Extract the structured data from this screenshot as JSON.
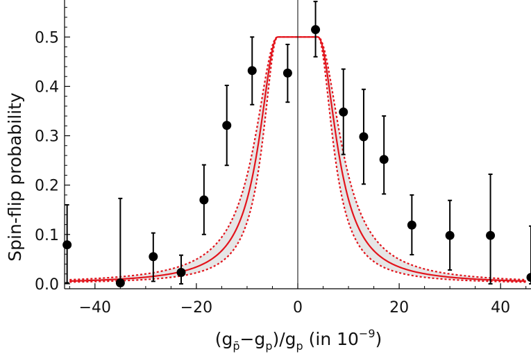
{
  "chart_data": {
    "type": "scatter",
    "title": "",
    "ylabel": "Spin-flip probability",
    "xlabel_parts": {
      "open": "(g",
      "sub1": "p̄",
      "minus": "−g",
      "sub2": "p",
      "mid": ")/g",
      "sub3": "p",
      "tail": " (in 10",
      "exp": "−9",
      "close": ")"
    },
    "xlim": [
      -46,
      46
    ],
    "ylim": [
      -0.01,
      0.575
    ],
    "x_ticks": [
      -40,
      -20,
      0,
      20,
      40
    ],
    "x_tick_labels": [
      "−40",
      "−20",
      "0",
      "20",
      "40"
    ],
    "y_ticks": [
      0.0,
      0.1,
      0.2,
      0.3,
      0.4,
      0.5
    ],
    "y_tick_labels": [
      "0.0",
      "0.1",
      "0.2",
      "0.3",
      "0.4",
      "0.5"
    ],
    "grid": false,
    "points": [
      {
        "x": -45.5,
        "y": 0.079,
        "err_low": 0.077,
        "err_high": 0.081
      },
      {
        "x": -35.0,
        "y": 0.002,
        "err_low": 0.002,
        "err_high": 0.171
      },
      {
        "x": -28.5,
        "y": 0.055,
        "err_low": 0.05,
        "err_high": 0.048
      },
      {
        "x": -23.0,
        "y": 0.023,
        "err_low": 0.023,
        "err_high": 0.035
      },
      {
        "x": -18.5,
        "y": 0.17,
        "err_low": 0.07,
        "err_high": 0.071
      },
      {
        "x": -14.0,
        "y": 0.321,
        "err_low": 0.081,
        "err_high": 0.081
      },
      {
        "x": -9.0,
        "y": 0.432,
        "err_low": 0.069,
        "err_high": 0.068
      },
      {
        "x": -2.0,
        "y": 0.427,
        "err_low": 0.059,
        "err_high": 0.058
      },
      {
        "x": 3.5,
        "y": 0.515,
        "err_low": 0.055,
        "err_high": 0.057
      },
      {
        "x": 9.0,
        "y": 0.348,
        "err_low": 0.086,
        "err_high": 0.087
      },
      {
        "x": 13.0,
        "y": 0.298,
        "err_low": 0.096,
        "err_high": 0.096
      },
      {
        "x": 17.0,
        "y": 0.252,
        "err_low": 0.07,
        "err_high": 0.088
      },
      {
        "x": 22.5,
        "y": 0.119,
        "err_low": 0.06,
        "err_high": 0.061
      },
      {
        "x": 30.0,
        "y": 0.098,
        "err_low": 0.07,
        "err_high": 0.071
      },
      {
        "x": 38.0,
        "y": 0.098,
        "err_low": 0.098,
        "err_high": 0.124
      },
      {
        "x": 46.0,
        "y": 0.013,
        "err_low": 0.013,
        "err_high": 0.104
      }
    ],
    "model_curve": {
      "description": "Saturated Lorentzian resonance (solid red) with lower/upper confidence bounds (dotted red) and shaded band",
      "center_width": 11.5,
      "lower_width": 10.0,
      "upper_width": 13.2,
      "plateau_half_width": 4.0,
      "amplitude": 0.5
    },
    "colors": {
      "curve": "#e3131b",
      "band": "#e6e6e6",
      "points": "#000000",
      "axis": "#000000"
    }
  }
}
